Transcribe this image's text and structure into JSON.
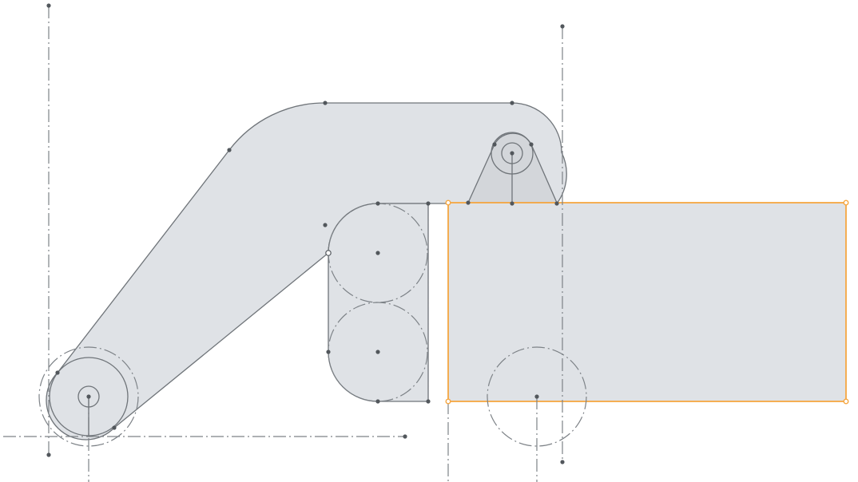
{
  "colors": {
    "background": "#ffffff",
    "region_fill": "#dfe2e6",
    "region_fill_dark": "#d3d6da",
    "edge": "#6f7479",
    "construction": "#7d8287",
    "vertex": "#52575c",
    "selection": "#f5a742",
    "open_vertex_fill": "#ffffff"
  },
  "sketch": {
    "selected_entity": "rectangle",
    "line_styles": {
      "edge": "solid",
      "construction": "dash-dot"
    },
    "shapes": [
      "link-body",
      "pin-bracket",
      "slot-body",
      "rectangle"
    ],
    "circles": [
      "base-pivot-circle",
      "base-pivot-hole",
      "base-construction-arc",
      "upper-pivot-circle",
      "upper-pivot-hole",
      "slot-upper-circle",
      "slot-lower-circle",
      "wheel-construction-circle"
    ],
    "construction_lines": [
      "vertical-left-axis",
      "horizontal-bottom-axis",
      "base-pivot-vertical",
      "vertical-right-axis",
      "slot-vertical",
      "rect-left-extension",
      "wheel-vertical",
      "upper-pivot-vertical"
    ]
  }
}
